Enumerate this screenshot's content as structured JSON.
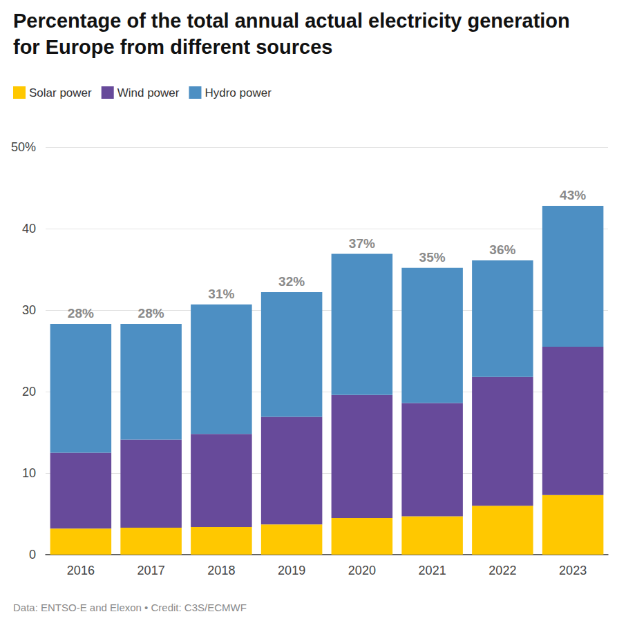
{
  "chart_data": {
    "type": "bar",
    "title": "Percentage of the total annual actual electricity generation for Europe from different sources",
    "source": "Data: ENTSO-E and Elexon • Credit: C3S/ECMWF",
    "categories": [
      "2016",
      "2017",
      "2018",
      "2019",
      "2020",
      "2021",
      "2022",
      "2023"
    ],
    "series": [
      {
        "name": "Solar power",
        "color": "#ffc800",
        "values": [
          3.2,
          3.3,
          3.4,
          3.7,
          4.5,
          4.7,
          6.0,
          7.3
        ]
      },
      {
        "name": "Wind power",
        "color": "#674a9a",
        "values": [
          9.3,
          10.8,
          11.4,
          13.2,
          15.1,
          13.9,
          15.8,
          18.2
        ]
      },
      {
        "name": "Hydro power",
        "color": "#4d8fc3",
        "values": [
          15.8,
          14.2,
          15.9,
          15.3,
          17.3,
          16.6,
          14.3,
          17.3
        ]
      }
    ],
    "total_labels": [
      "28%",
      "28%",
      "31%",
      "32%",
      "37%",
      "35%",
      "36%",
      "43%"
    ],
    "ylim": [
      0,
      50
    ],
    "yticks": [
      0,
      10,
      20,
      30,
      40,
      {
        "value": 50,
        "label": "50%"
      }
    ],
    "stacked": true,
    "grid": true,
    "legend": "top-left"
  }
}
